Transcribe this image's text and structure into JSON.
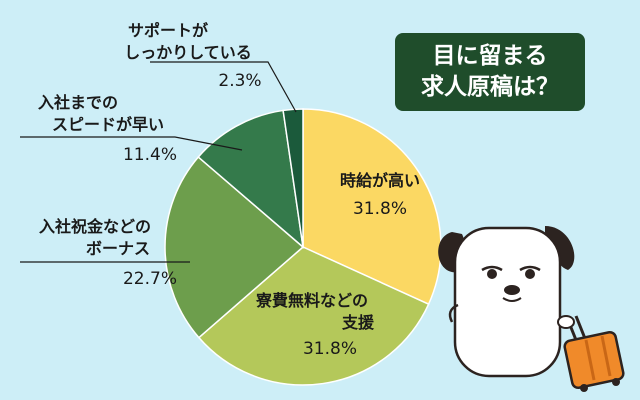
{
  "title": {
    "line1": "目に留まる",
    "line2": "求人原稿は？"
  },
  "colors": {
    "background": "#cdeef7",
    "title_box": "#1f4d2b",
    "label_line": "#1a1a1a",
    "slices": [
      "#fbd863",
      "#b4c85a",
      "#6d9e4c",
      "#347a4b",
      "#1b5a3b"
    ],
    "mascot_body": "#ffffff",
    "mascot_ears": "#2c2320",
    "suitcase": "#f08a2a"
  },
  "mascot": {
    "icon": "dog-mascot-with-suitcase-icon"
  },
  "chart_data": {
    "type": "pie",
    "title": "目に留まる求人原稿は？",
    "start": "12 o'clock",
    "direction": "clockwise",
    "slices": [
      {
        "label": [
          "時給が高い"
        ],
        "value": 31.8,
        "display": "31.8%"
      },
      {
        "label": [
          "寮費無料などの",
          "支援"
        ],
        "value": 31.8,
        "display": "31.8%"
      },
      {
        "label": [
          "入社祝金などの",
          "ボーナス"
        ],
        "value": 22.7,
        "display": "22.7%"
      },
      {
        "label": [
          "入社までの",
          "スピードが早い"
        ],
        "value": 11.4,
        "display": "11.4%"
      },
      {
        "label": [
          "サポートが",
          "しっかりしている"
        ],
        "value": 2.3,
        "display": "2.3%"
      }
    ]
  }
}
